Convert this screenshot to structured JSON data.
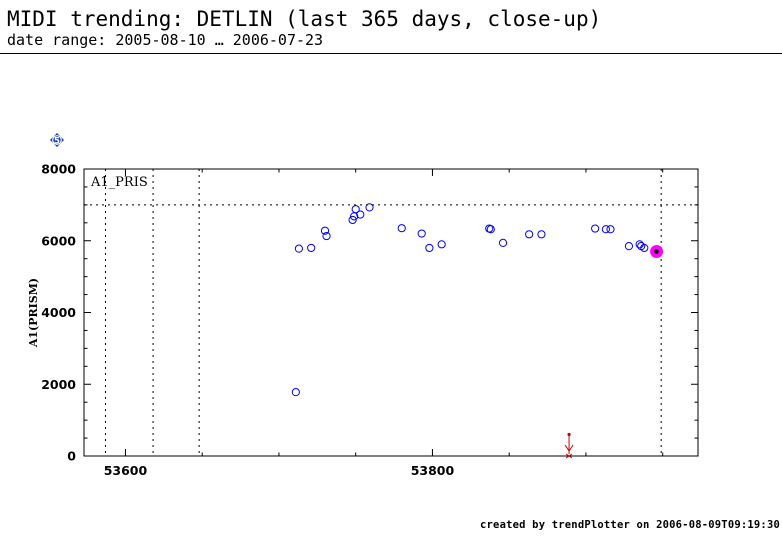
{
  "header": {
    "title": "MIDI trending: DETLIN (last 365 days, close-up)",
    "date_range": "date range: 2005-08-10 … 2006-07-23"
  },
  "footer": {
    "credit": "created by trendPlotter on 2006-08-09T09:19:30"
  },
  "badge": {
    "label": "5",
    "color": "#1a3fb5"
  },
  "chart_data": {
    "type": "scatter",
    "title": "",
    "xlabel": "",
    "ylabel": "A1(PRISM)",
    "panel_label": "A1_PRIS",
    "xlim": [
      53573,
      53973
    ],
    "ylim": [
      0,
      8000
    ],
    "x_ticks": [
      53600,
      53800
    ],
    "x_tick_labels": [
      "53600",
      "53800"
    ],
    "y_ticks": [
      0,
      2000,
      4000,
      6000,
      8000
    ],
    "y_tick_labels": [
      "0",
      "2000",
      "4000",
      "6000",
      "8000"
    ],
    "reference_line_y": 7000,
    "vertical_markers_x": [
      53587,
      53618,
      53648,
      53949
    ],
    "series": [
      {
        "marker": "open-circle",
        "color": "#0000ff",
        "points": [
          [
            53711,
            1780
          ],
          [
            53713,
            5780
          ],
          [
            53721,
            5800
          ],
          [
            53730,
            6280
          ],
          [
            53731,
            6130
          ],
          [
            53748,
            6580
          ],
          [
            53749,
            6680
          ],
          [
            53750,
            6880
          ],
          [
            53753,
            6730
          ],
          [
            53759,
            6930
          ],
          [
            53780,
            6350
          ],
          [
            53793,
            6200
          ],
          [
            53798,
            5800
          ],
          [
            53806,
            5900
          ],
          [
            53837,
            6340
          ],
          [
            53838,
            6320
          ],
          [
            53846,
            5940
          ],
          [
            53863,
            6180
          ],
          [
            53871,
            6180
          ],
          [
            53906,
            6340
          ],
          [
            53913,
            6320
          ],
          [
            53916,
            6320
          ],
          [
            53928,
            5850
          ],
          [
            53935,
            5900
          ],
          [
            53936,
            5850
          ],
          [
            53938,
            5800
          ]
        ]
      }
    ],
    "highlight_point": {
      "x": 53946,
      "y": 5700,
      "fill": "#ff00ff",
      "dot": "#000000"
    },
    "limit_marker": {
      "x": 53889,
      "y_top": 600,
      "y_bottom": 0,
      "color": "#cc0000"
    },
    "colors": {
      "axis": "#000000",
      "grid": "#000000"
    }
  }
}
